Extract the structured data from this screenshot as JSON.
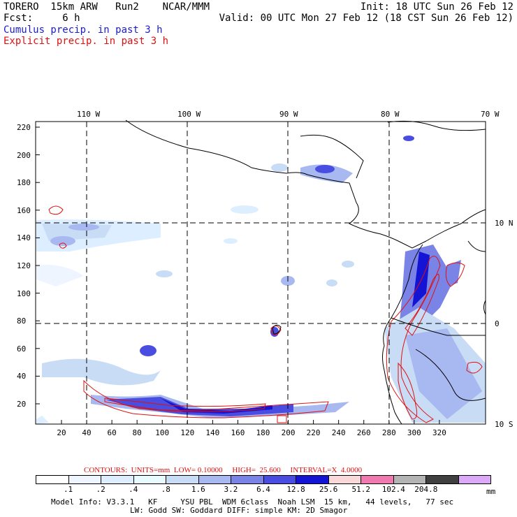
{
  "header": {
    "line1_left": "TORERO  15km ARW   Run2    NCAR/MMM",
    "line1_right": "Init: 18 UTC Sun 26 Feb 12",
    "line2_left": "Fcst:     6 h",
    "line2_right": "Valid: 00 UTC Mon 27 Feb 12 (18 CST Sun 26 Feb 12)",
    "line3": "Cumulus precip. in past 3 h",
    "line4": "Explicit precip. in past 3 h"
  },
  "map": {
    "top_lon_labels": [
      "110 W",
      "100 W",
      "90 W",
      "80 W",
      "70 W"
    ],
    "right_lat_labels": [
      "10 N",
      "0",
      "10 S"
    ],
    "left_ticks": [
      "220",
      "200",
      "180",
      "160",
      "140",
      "120",
      "100",
      "80",
      "60",
      "40",
      "20"
    ],
    "bottom_ticks": [
      "20",
      "40",
      "60",
      "80",
      "100",
      "120",
      "140",
      "160",
      "180",
      "200",
      "220",
      "240",
      "260",
      "280",
      "300",
      "320"
    ]
  },
  "legend": {
    "contours_text": "CONTOURS:  UNITS=mm  LOW= 0.10000     HIGH=  25.600     INTERVAL=X  4.0000",
    "colors": [
      "#ffffff",
      "#eef5ff",
      "#dceeff",
      "#e8fbff",
      "#c8dcf5",
      "#a8b8f0",
      "#7a84e6",
      "#4a4ee0",
      "#1414d4",
      "#f8d8d8",
      "#f07ab0",
      "#b4b4b4",
      "#404040",
      "#dca8f8"
    ],
    "labels": [
      ".1",
      ".2",
      ".4",
      ".8",
      "1.6",
      "3.2",
      "6.4",
      "12.8",
      "25.6",
      "51.2",
      "102.4",
      "204.8"
    ],
    "units": "mm"
  },
  "footer": {
    "line1": "Model Info: V3.3.1   KF     YSU PBL  WDM 6class  Noah LSM  15 km,   44 levels,   77 sec",
    "line2": "LW: Godd SW: Goddard DIFF: simple KM: 2D Smagor"
  }
}
